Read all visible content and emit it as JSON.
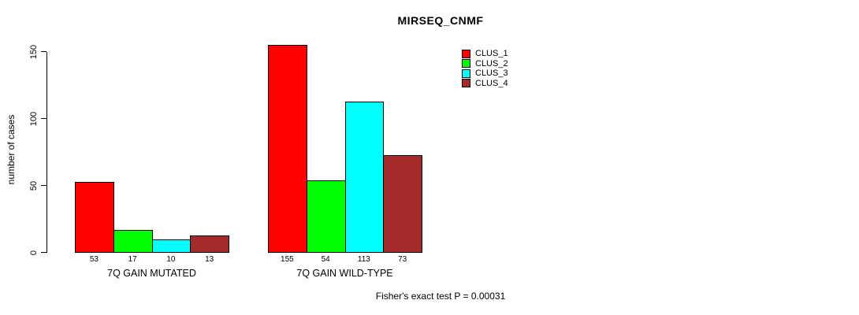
{
  "title": "MIRSEQ_CNMF",
  "y_axis_label": "number of cases",
  "footer": "Fisher's exact test P = 0.00031",
  "colors": {
    "background": "#FFFFFF",
    "axis": "#000000",
    "clus_1": "#FF0000",
    "clus_2": "#00FF00",
    "clus_3": "#00FFFF",
    "clus_4": "#A52A2A"
  },
  "chart_data": {
    "type": "bar",
    "categories": [
      "7Q GAIN MUTATED",
      "7Q GAIN WILD-TYPE"
    ],
    "series": [
      {
        "name": "CLUS_1",
        "color": "#FF0000",
        "values": [
          53,
          155
        ]
      },
      {
        "name": "CLUS_2",
        "color": "#00FF00",
        "values": [
          17,
          54
        ]
      },
      {
        "name": "CLUS_3",
        "color": "#00FFFF",
        "values": [
          10,
          113
        ]
      },
      {
        "name": "CLUS_4",
        "color": "#A52A2A",
        "values": [
          13,
          73
        ]
      }
    ],
    "title": "MIRSEQ_CNMF",
    "xlabel": "",
    "ylabel": "number of cases",
    "ylim": [
      0,
      150
    ],
    "yticks": [
      0,
      50,
      100,
      150
    ],
    "grid": false,
    "bar_value_labels": true,
    "legend_position": "top-right",
    "annotation": "Fisher's exact test P = 0.00031"
  }
}
